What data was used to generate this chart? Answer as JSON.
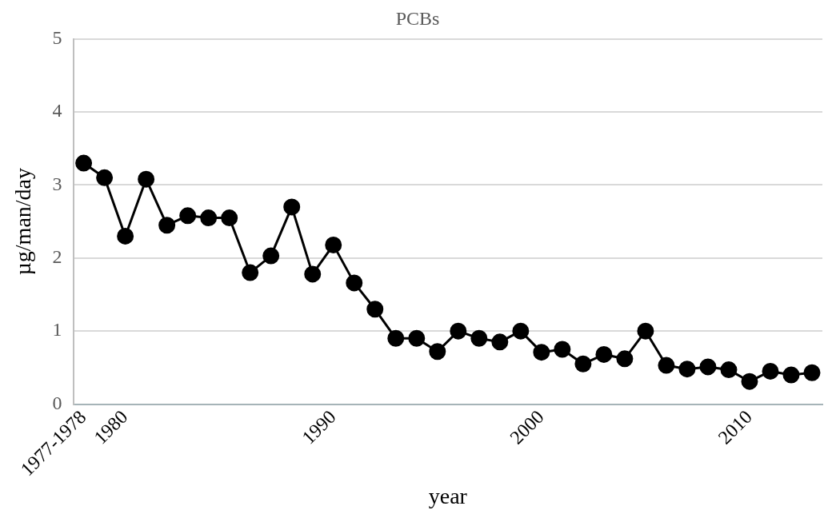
{
  "chart_data": {
    "type": "line",
    "title": "PCBs",
    "xlabel": "year",
    "ylabel": "µg/man/day",
    "categories": [
      "1977-1978",
      null,
      "1980",
      null,
      null,
      null,
      null,
      null,
      null,
      null,
      null,
      null,
      "1990",
      null,
      null,
      null,
      null,
      null,
      null,
      null,
      null,
      null,
      "2000",
      null,
      null,
      null,
      null,
      null,
      null,
      null,
      null,
      null,
      "2010",
      null,
      null,
      null
    ],
    "series": [
      {
        "color": "#000000",
        "values": [
          3.3,
          3.1,
          2.3,
          3.08,
          2.45,
          2.58,
          2.55,
          2.55,
          1.8,
          2.03,
          2.7,
          1.78,
          2.18,
          1.66,
          1.3,
          0.9,
          0.9,
          0.72,
          1.0,
          0.9,
          0.85,
          1.0,
          0.71,
          0.75,
          0.55,
          0.68,
          0.62,
          1.0,
          0.53,
          0.48,
          0.51,
          0.47,
          0.31,
          0.45,
          0.4,
          0.43
        ]
      }
    ],
    "ylim": [
      0,
      5
    ],
    "yticks": [
      0,
      1,
      2,
      3,
      4,
      5
    ],
    "grid": "y",
    "legend": false,
    "marker": "circle",
    "line_style": "solid"
  }
}
